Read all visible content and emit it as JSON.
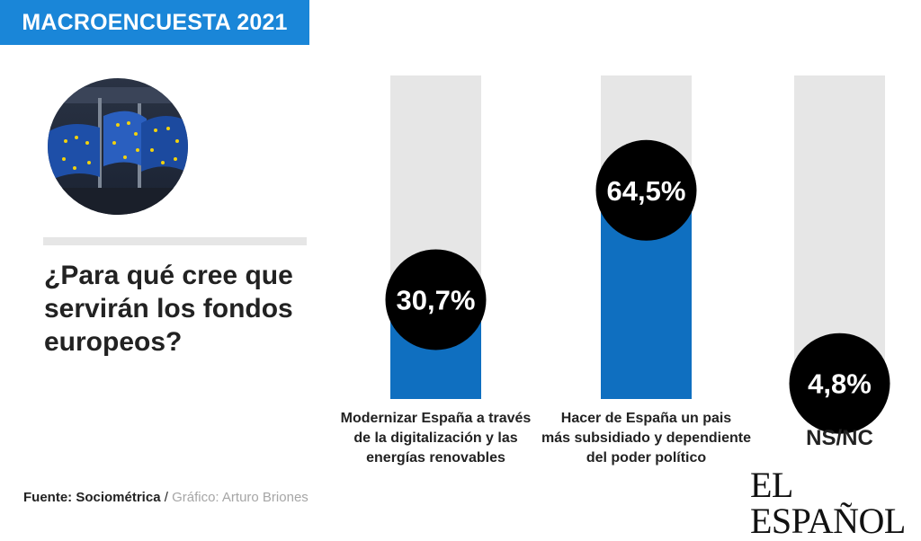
{
  "header": {
    "banner": "MACROENCUESTA 2021"
  },
  "photo": {
    "icon": "eu-flags-photo"
  },
  "question": "¿Para qué cree que servirán los fondos europeos?",
  "chart_data": {
    "type": "bar",
    "categories": [
      [
        "Modernizar España a través",
        "de la digitalización y las",
        "energías renovables"
      ],
      [
        "Hacer de España un pais",
        "más subsidiado y dependiente",
        "del poder político"
      ],
      [
        "NS/NC"
      ]
    ],
    "values": [
      30.7,
      64.5,
      4.8
    ],
    "value_labels": [
      "30,7%",
      "64,5%",
      "4,8%"
    ],
    "ylim": [
      0,
      100
    ],
    "colors": {
      "bar_main": "#0f6fc0",
      "bar_other": "#4d4d4d",
      "track": "#e6e6e6",
      "bubble": "#000000",
      "bubble_text": "#ffffff"
    }
  },
  "footer": {
    "source_label": "Fuente: Sociométrica",
    "separator": " / ",
    "credit": "Gráfico: Arturo Briones",
    "logo": "EL ESPAÑOL"
  }
}
